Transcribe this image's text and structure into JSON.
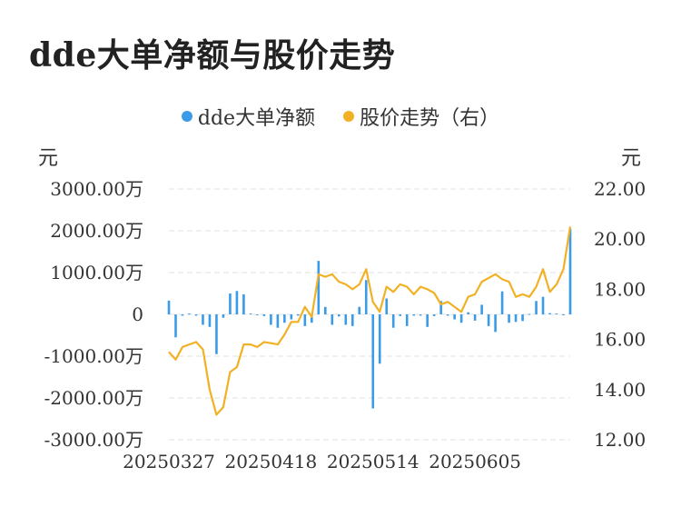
{
  "title": "dde大单净额与股价走势",
  "legend": {
    "series1": "dde大单净额",
    "series2": "股价走势（右）"
  },
  "units": {
    "left": "元",
    "right": "元"
  },
  "colors": {
    "bar": "#3a9be8",
    "line": "#f2b124",
    "grid": "#e6e6e6"
  },
  "chart_data": {
    "type": "bar+line",
    "title": "dde大单净额与股价走势",
    "y_left": {
      "label": "元",
      "range": [
        -3000,
        3000
      ],
      "ticks": [
        3000,
        2000,
        1000,
        0,
        -1000,
        -2000,
        -3000
      ],
      "tick_labels": [
        "3000.00万",
        "2000.00万",
        "1000.00万",
        "0",
        "-1000.00万",
        "-2000.00万",
        "-3000.00万"
      ]
    },
    "y_right": {
      "label": "元",
      "range": [
        12,
        22
      ],
      "ticks": [
        22,
        20,
        18,
        16,
        14,
        12
      ],
      "tick_labels": [
        "22.00",
        "20.00",
        "18.00",
        "16.00",
        "14.00",
        "12.00"
      ]
    },
    "x_tick_labels": [
      {
        "index": 0,
        "label": "20250327"
      },
      {
        "index": 15,
        "label": "20250418"
      },
      {
        "index": 30,
        "label": "20250514"
      },
      {
        "index": 45,
        "label": "20250605"
      }
    ],
    "grid": true,
    "legend_position": "top",
    "series": [
      {
        "name": "dde大单净额",
        "type": "bar",
        "unit": "万元",
        "values": [
          330,
          -550,
          -30,
          20,
          -30,
          -250,
          -300,
          -950,
          -80,
          500,
          560,
          480,
          20,
          -20,
          -40,
          -250,
          -320,
          -200,
          -120,
          -30,
          -280,
          -200,
          1280,
          180,
          -250,
          -50,
          -250,
          -280,
          180,
          820,
          -2250,
          -1180,
          380,
          -320,
          -40,
          -280,
          -30,
          -30,
          -300,
          -40,
          320,
          -30,
          -120,
          -200,
          50,
          -150,
          230,
          -280,
          -420,
          550,
          -200,
          -180,
          -160,
          10,
          320,
          420,
          30,
          20,
          -20,
          2050
        ]
      },
      {
        "name": "股价走势（右）",
        "type": "line",
        "unit": "元",
        "values": [
          15.5,
          15.2,
          15.7,
          15.8,
          15.9,
          15.6,
          14.0,
          13.0,
          13.3,
          14.7,
          14.9,
          15.8,
          15.8,
          15.7,
          15.9,
          15.85,
          15.8,
          16.2,
          16.7,
          16.7,
          17.3,
          16.9,
          18.6,
          18.5,
          18.6,
          18.3,
          18.2,
          18.0,
          18.2,
          18.8,
          17.5,
          17.1,
          18.1,
          17.9,
          18.2,
          18.1,
          17.8,
          18.1,
          18.0,
          17.85,
          17.4,
          17.5,
          17.3,
          17.1,
          17.7,
          17.8,
          18.3,
          18.45,
          18.6,
          18.4,
          18.3,
          17.7,
          17.8,
          17.7,
          18.1,
          18.8,
          17.9,
          18.2,
          18.8,
          20.5
        ]
      }
    ]
  }
}
